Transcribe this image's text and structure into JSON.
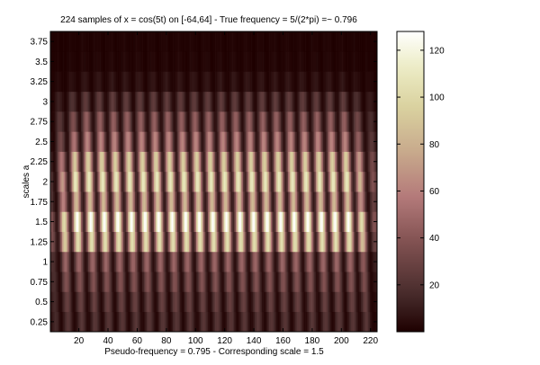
{
  "chart_data": {
    "type": "heatmap",
    "title": "224 samples of x = cos(5t) on [-64,64] - True frequency = 5/(2*pi) =~ 0.796",
    "xlabel": "Pseudo-frequency = 0.795  -  Corresponding scale = 1.5",
    "ylabel": "scales a",
    "xlim": [
      0.5,
      224.5
    ],
    "ylim": [
      0.125,
      3.875
    ],
    "x_ticks": [
      20,
      40,
      60,
      80,
      100,
      120,
      140,
      160,
      180,
      200,
      220
    ],
    "x_tick_labels": [
      "20",
      "40",
      "60",
      "80",
      "100",
      "120",
      "140",
      "160",
      "180",
      "200",
      "220"
    ],
    "y_ticks": [
      0.25,
      0.5,
      0.75,
      1,
      1.25,
      1.5,
      1.75,
      2,
      2.25,
      2.5,
      2.75,
      3,
      3.25,
      3.5,
      3.75
    ],
    "y_tick_labels": [
      "0.25",
      "0.5",
      "0.75",
      "1",
      "1.25",
      "1.5",
      "1.75",
      "2",
      "2.25",
      "2.5",
      "2.75",
      "3",
      "3.25",
      "3.5",
      "3.75"
    ],
    "scales": [
      0.25,
      0.5,
      0.75,
      1,
      1.25,
      1.5,
      1.75,
      2,
      2.25,
      2.5,
      2.75,
      3,
      3.25,
      3.5,
      3.75
    ],
    "row_peak_magnitude": [
      22,
      28,
      38,
      48,
      104,
      128,
      85,
      110,
      95,
      62,
      45,
      25,
      8,
      3,
      2
    ],
    "oscillation_period_samples": 9.3,
    "colormap": "pink",
    "colorbar": {
      "range": [
        0,
        128
      ],
      "ticks": [
        20,
        40,
        60,
        80,
        100,
        120
      ],
      "tick_labels": [
        "20",
        "40",
        "60",
        "80",
        "100",
        "120"
      ]
    },
    "grid": false
  }
}
